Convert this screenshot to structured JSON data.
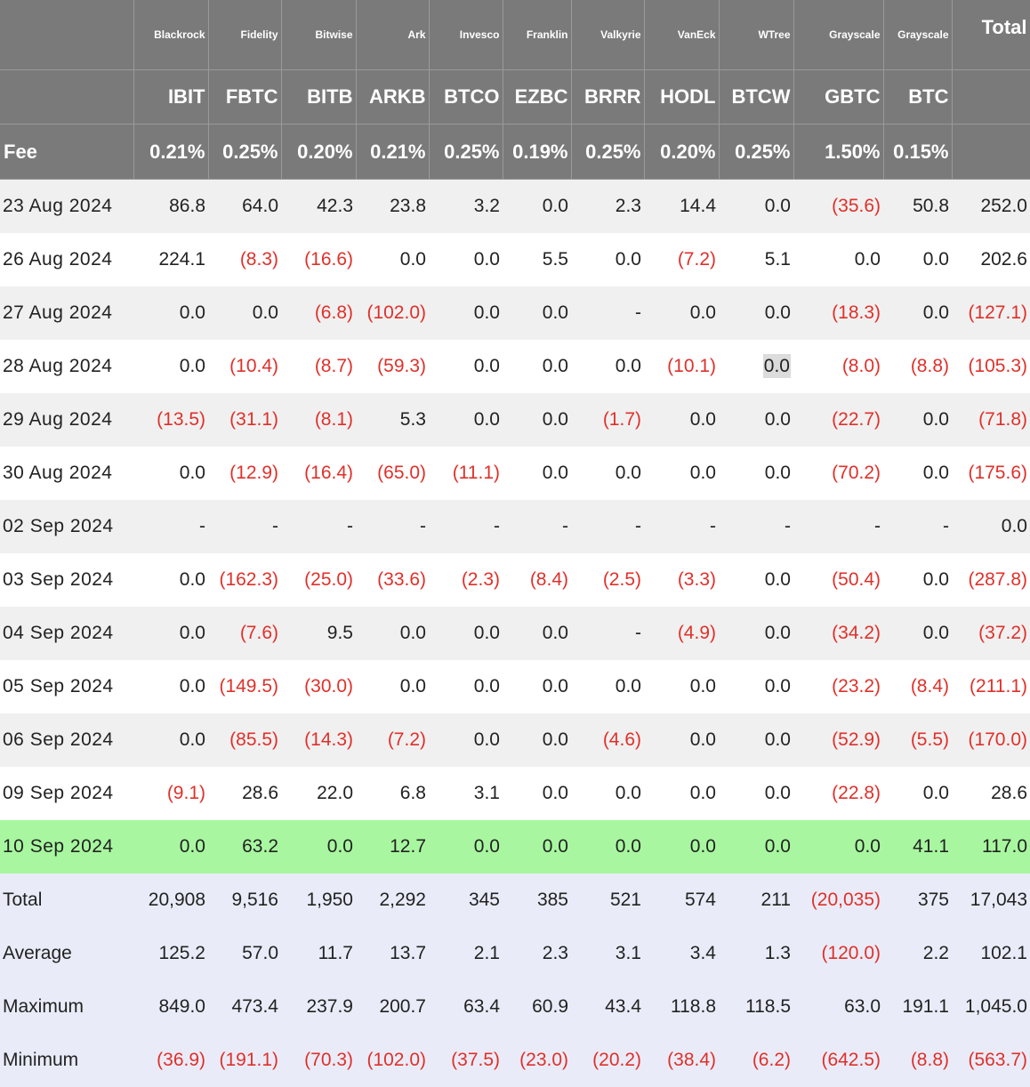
{
  "issuers": [
    "",
    "Blackrock",
    "Fidelity",
    "Bitwise",
    "Ark",
    "Invesco",
    "Franklin",
    "Valkyrie",
    "VanEck",
    "WTree",
    "Grayscale",
    "Grayscale",
    "Total"
  ],
  "tickers": [
    "",
    "IBIT",
    "FBTC",
    "BITB",
    "ARKB",
    "BTCO",
    "EZBC",
    "BRRR",
    "HODL",
    "BTCW",
    "GBTC",
    "BTC",
    ""
  ],
  "fees": [
    "Fee",
    "0.21%",
    "0.25%",
    "0.20%",
    "0.21%",
    "0.25%",
    "0.19%",
    "0.25%",
    "0.20%",
    "0.25%",
    "1.50%",
    "0.15%",
    ""
  ],
  "rows": [
    [
      "23 Aug 2024",
      "86.8",
      "64.0",
      "42.3",
      "23.8",
      "3.2",
      "0.0",
      "2.3",
      "14.4",
      "0.0",
      "(35.6)",
      "50.8",
      "252.0"
    ],
    [
      "26 Aug 2024",
      "224.1",
      "(8.3)",
      "(16.6)",
      "0.0",
      "0.0",
      "5.5",
      "0.0",
      "(7.2)",
      "5.1",
      "0.0",
      "0.0",
      "202.6"
    ],
    [
      "27 Aug 2024",
      "0.0",
      "0.0",
      "(6.8)",
      "(102.0)",
      "0.0",
      "0.0",
      "-",
      "0.0",
      "0.0",
      "(18.3)",
      "0.0",
      "(127.1)"
    ],
    [
      "28 Aug 2024",
      "0.0",
      "(10.4)",
      "(8.7)",
      "(59.3)",
      "0.0",
      "0.0",
      "0.0",
      "(10.1)",
      "0.0",
      "(8.0)",
      "(8.8)",
      "(105.3)"
    ],
    [
      "29 Aug 2024",
      "(13.5)",
      "(31.1)",
      "(8.1)",
      "5.3",
      "0.0",
      "0.0",
      "(1.7)",
      "0.0",
      "0.0",
      "(22.7)",
      "0.0",
      "(71.8)"
    ],
    [
      "30 Aug 2024",
      "0.0",
      "(12.9)",
      "(16.4)",
      "(65.0)",
      "(11.1)",
      "0.0",
      "0.0",
      "0.0",
      "0.0",
      "(70.2)",
      "0.0",
      "(175.6)"
    ],
    [
      "02 Sep 2024",
      "-",
      "-",
      "-",
      "-",
      "-",
      "-",
      "-",
      "-",
      "-",
      "-",
      "-",
      "0.0"
    ],
    [
      "03 Sep 2024",
      "0.0",
      "(162.3)",
      "(25.0)",
      "(33.6)",
      "(2.3)",
      "(8.4)",
      "(2.5)",
      "(3.3)",
      "0.0",
      "(50.4)",
      "0.0",
      "(287.8)"
    ],
    [
      "04 Sep 2024",
      "0.0",
      "(7.6)",
      "9.5",
      "0.0",
      "0.0",
      "0.0",
      "-",
      "(4.9)",
      "0.0",
      "(34.2)",
      "0.0",
      "(37.2)"
    ],
    [
      "05 Sep 2024",
      "0.0",
      "(149.5)",
      "(30.0)",
      "0.0",
      "0.0",
      "0.0",
      "0.0",
      "0.0",
      "0.0",
      "(23.2)",
      "(8.4)",
      "(211.1)"
    ],
    [
      "06 Sep 2024",
      "0.0",
      "(85.5)",
      "(14.3)",
      "(7.2)",
      "0.0",
      "0.0",
      "(4.6)",
      "0.0",
      "0.0",
      "(52.9)",
      "(5.5)",
      "(170.0)"
    ],
    [
      "09 Sep 2024",
      "(9.1)",
      "28.6",
      "22.0",
      "6.8",
      "3.1",
      "0.0",
      "0.0",
      "0.0",
      "0.0",
      "(22.8)",
      "0.0",
      "28.6"
    ],
    [
      "10 Sep 2024",
      "0.0",
      "63.2",
      "0.0",
      "12.7",
      "0.0",
      "0.0",
      "0.0",
      "0.0",
      "0.0",
      "0.0",
      "41.1",
      "117.0"
    ]
  ],
  "highlight_row_index": 12,
  "summary": [
    [
      "Total",
      "20,908",
      "9,516",
      "1,950",
      "2,292",
      "345",
      "385",
      "521",
      "574",
      "211",
      "(20,035)",
      "375",
      "17,043"
    ],
    [
      "Average",
      "125.2",
      "57.0",
      "11.7",
      "13.7",
      "2.1",
      "2.3",
      "3.1",
      "3.4",
      "1.3",
      "(120.0)",
      "2.2",
      "102.1"
    ],
    [
      "Maximum",
      "849.0",
      "473.4",
      "237.9",
      "200.7",
      "63.4",
      "60.9",
      "43.4",
      "118.8",
      "118.5",
      "63.0",
      "191.1",
      "1,045.0"
    ],
    [
      "Minimum",
      "(36.9)",
      "(191.1)",
      "(70.3)",
      "(102.0)",
      "(37.5)",
      "(23.0)",
      "(20.2)",
      "(38.4)",
      "(6.2)",
      "(642.5)",
      "(8.8)",
      "(563.7)"
    ]
  ],
  "colors": {
    "header_bg": "#7a7a7a",
    "negative": "#e0302a",
    "highlight_row": "#a8f7a0",
    "summary_bg": "#e9ecf8",
    "stripe": "#f0f0f0"
  }
}
